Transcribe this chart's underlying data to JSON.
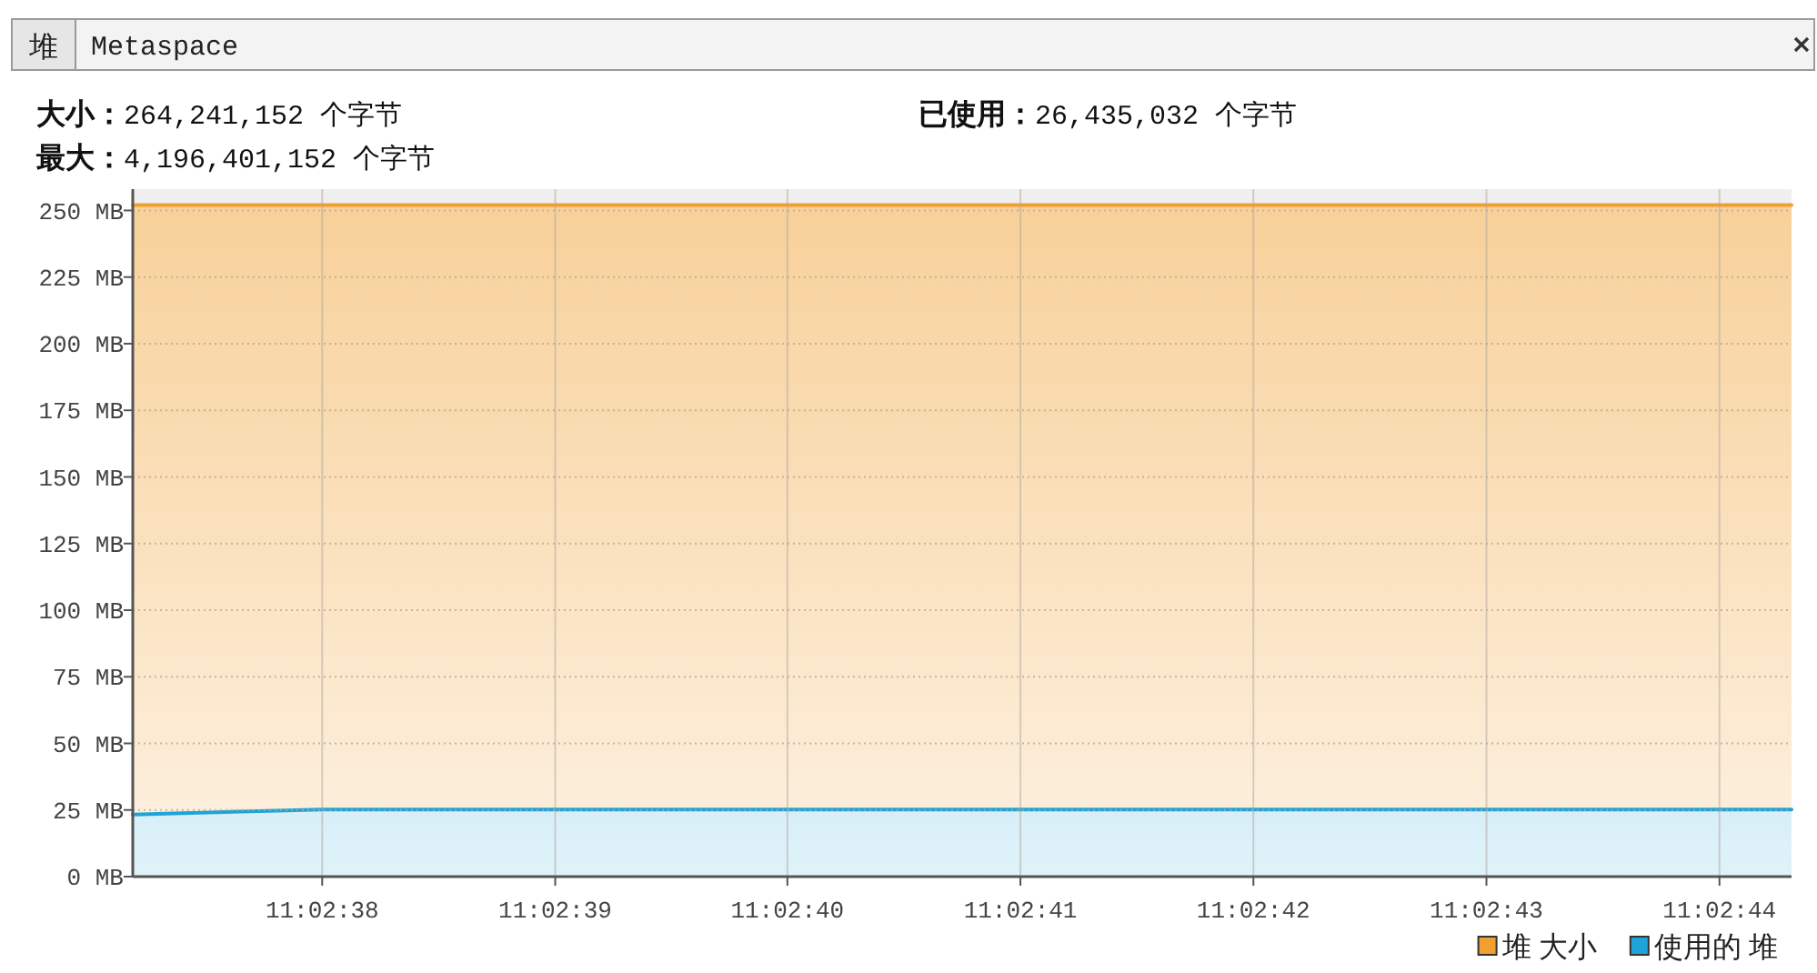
{
  "chart_data": {
    "type": "area",
    "annotations": [
      "堆",
      "Metaspace",
      "大小：264,241,152 个字节",
      "已使用：26,435,032 个字节",
      "最大：4,196,401,152 个字节"
    ],
    "x": [
      11.043663,
      11.043889,
      11.044167,
      11.044444,
      11.044722,
      11.045,
      11.045278,
      11.045556,
      11.045642
    ],
    "series": [
      {
        "name": "堆 大小",
        "color": "#f0a030",
        "values": [
          252,
          252,
          252,
          252,
          252,
          252,
          252,
          252,
          252
        ]
      },
      {
        "name": "使用的 堆",
        "color": "#1ea4d8",
        "values": [
          23.3,
          25.2,
          25.2,
          25.2,
          25.2,
          25.2,
          25.2,
          25.2,
          25.2
        ]
      }
    ],
    "xlim": [
      11.043663,
      11.045642
    ],
    "ylim": [
      0,
      258
    ],
    "xticks": [
      {
        "value": 11.043889,
        "label": "11:02:38"
      },
      {
        "value": 11.044167,
        "label": "11:02:39"
      },
      {
        "value": 11.044444,
        "label": "11:02:40"
      },
      {
        "value": 11.044722,
        "label": "11:02:41"
      },
      {
        "value": 11.045,
        "label": "11:02:42"
      },
      {
        "value": 11.045278,
        "label": "11:02:43"
      },
      {
        "value": 11.045556,
        "label": "11:02:44"
      }
    ],
    "yticks": [
      {
        "value": 0,
        "label": "0 MB"
      },
      {
        "value": 25,
        "label": "25 MB"
      },
      {
        "value": 50,
        "label": "50 MB"
      },
      {
        "value": 75,
        "label": "75 MB"
      },
      {
        "value": 100,
        "label": "100 MB"
      },
      {
        "value": 125,
        "label": "125 MB"
      },
      {
        "value": 150,
        "label": "150 MB"
      },
      {
        "value": 175,
        "label": "175 MB"
      },
      {
        "value": 200,
        "label": "200 MB"
      },
      {
        "value": 225,
        "label": "225 MB"
      },
      {
        "value": 250,
        "label": "250 MB"
      }
    ],
    "grid": true,
    "legend": "bottom right"
  }
}
